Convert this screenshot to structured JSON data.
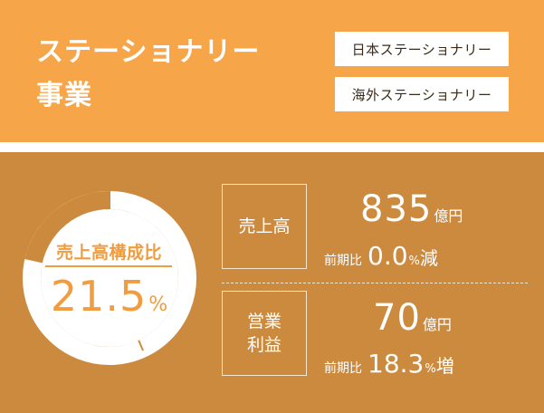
{
  "segment": {
    "title_line1": "ステーショナリー",
    "title_line2": "事業"
  },
  "tags": [
    "日本ステーショナリー",
    "海外ステーショナリー"
  ],
  "composition": {
    "label": "売上高構成比",
    "value": "21.5",
    "unit": "%",
    "fraction": 0.215
  },
  "metrics": [
    {
      "label": "売上高",
      "value": "835",
      "unit": "億円",
      "yoy_label": "前期比",
      "yoy_value": "0.0",
      "yoy_unit": "%",
      "yoy_change": "減"
    },
    {
      "label_line1": "営業",
      "label_line2": "利益",
      "value": "70",
      "unit": "億円",
      "yoy_label": "前期比",
      "yoy_value": "18.3",
      "yoy_unit": "%",
      "yoy_change": "増"
    }
  ],
  "colors": {
    "header_bg": "#f6a549",
    "panel_bg": "#cc8a3f",
    "accent": "#f19c3e"
  }
}
